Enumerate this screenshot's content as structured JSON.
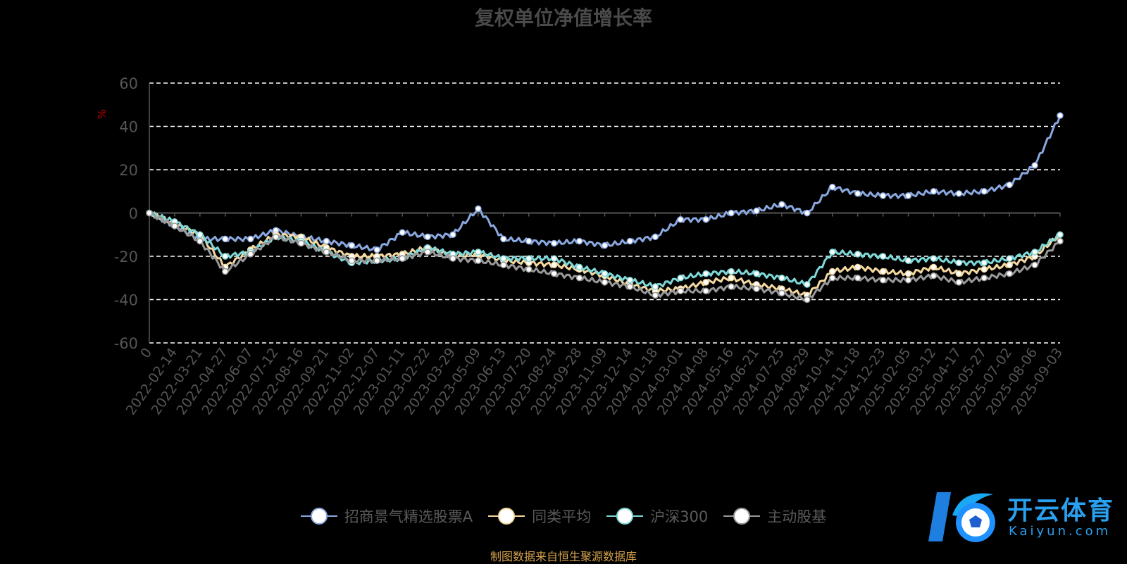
{
  "title": "复权单位净值增长率",
  "source_note": "制图数据来自恒生聚源数据库",
  "logo": {
    "text_cn": "开云体育",
    "text_en": "Kaiyun.com",
    "icon": "soccer-ball-logo-icon"
  },
  "colors": {
    "background": "#000000",
    "grid": "#ffffff",
    "axis_text": "#555555",
    "ylabel": "#cc0000",
    "s1": "#8aa8e0",
    "s2": "#f5d9a0",
    "s3": "#7fd8d8",
    "s4": "#999999"
  },
  "chart_data": {
    "type": "line",
    "title": "复权单位净值增长率",
    "ylabel": "%",
    "xlabel": "",
    "ylim": [
      -60,
      60
    ],
    "yticks": [
      60,
      40,
      20,
      0,
      -20,
      -40,
      -60
    ],
    "grid": true,
    "legend_position": "bottom",
    "x": [
      "0",
      "2022-02-14",
      "2022-03-21",
      "2022-04-27",
      "2022-06-07",
      "2022-07-12",
      "2022-08-16",
      "2022-09-21",
      "2022-11-02",
      "2022-12-07",
      "2023-01-11",
      "2023-02-22",
      "2023-03-29",
      "2023-05-09",
      "2023-06-13",
      "2023-07-20",
      "2023-08-24",
      "2023-09-28",
      "2023-11-09",
      "2023-12-14",
      "2024-01-18",
      "2024-03-01",
      "2024-04-08",
      "2024-05-16",
      "2024-06-21",
      "2024-07-25",
      "2024-08-29",
      "2024-10-14",
      "2024-11-18",
      "2024-12-23",
      "2025-02-05",
      "2025-03-12",
      "2025-04-17",
      "2025-05-27",
      "2025-07-02",
      "2025-08-06",
      "2025-09-03"
    ],
    "series": [
      {
        "name": "招商景气精选股票A",
        "color": "#8aa8e0",
        "values": [
          0,
          -6,
          -12,
          -12,
          -12,
          -8,
          -11,
          -13,
          -15,
          -17,
          -9,
          -11,
          -10,
          2,
          -12,
          -13,
          -14,
          -13,
          -15,
          -13,
          -11,
          -3,
          -3,
          0,
          1,
          4,
          0,
          12,
          9,
          8,
          8,
          10,
          9,
          10,
          13,
          22,
          45
        ]
      },
      {
        "name": "同类平均",
        "color": "#f5d9a0",
        "values": [
          0,
          -5,
          -10,
          -25,
          -17,
          -10,
          -11,
          -16,
          -20,
          -20,
          -19,
          -16,
          -20,
          -19,
          -22,
          -23,
          -24,
          -26,
          -29,
          -33,
          -36,
          -35,
          -32,
          -30,
          -33,
          -35,
          -38,
          -27,
          -25,
          -27,
          -28,
          -25,
          -28,
          -26,
          -24,
          -20,
          -10
        ]
      },
      {
        "name": "沪深300",
        "color": "#7fd8d8",
        "values": [
          0,
          -4,
          -10,
          -20,
          -18,
          -11,
          -13,
          -18,
          -23,
          -22,
          -21,
          -16,
          -19,
          -18,
          -21,
          -21,
          -21,
          -25,
          -28,
          -31,
          -34,
          -30,
          -28,
          -27,
          -28,
          -30,
          -33,
          -18,
          -19,
          -20,
          -22,
          -21,
          -23,
          -23,
          -21,
          -18,
          -10
        ]
      },
      {
        "name": "主动股基",
        "color": "#999999",
        "values": [
          0,
          -6,
          -13,
          -27,
          -19,
          -11,
          -14,
          -18,
          -22,
          -22,
          -21,
          -18,
          -21,
          -22,
          -24,
          -26,
          -28,
          -30,
          -32,
          -34,
          -38,
          -36,
          -36,
          -34,
          -35,
          -37,
          -40,
          -30,
          -30,
          -31,
          -31,
          -29,
          -32,
          -30,
          -28,
          -24,
          -13
        ]
      }
    ]
  }
}
